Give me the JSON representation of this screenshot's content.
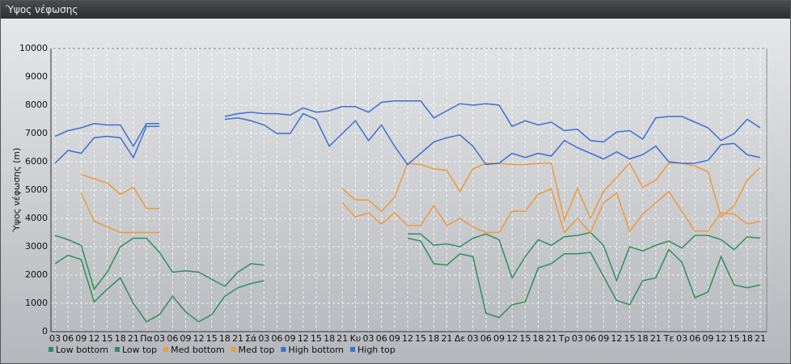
{
  "header": {
    "title": "Ύψος νέφωσης"
  },
  "chart_data": {
    "type": "line",
    "ylabel": "Ύψος νέφωσης (m)",
    "ylim": [
      0,
      10000
    ],
    "yticks": [
      0,
      1000,
      2000,
      3000,
      4000,
      5000,
      6000,
      7000,
      8000,
      9000,
      10000
    ],
    "grid": true,
    "categories": [
      "03",
      "06",
      "09",
      "12",
      "15",
      "18",
      "21",
      "Πα",
      "03",
      "06",
      "09",
      "12",
      "15",
      "18",
      "21",
      "Σά",
      "03",
      "06",
      "09",
      "12",
      "15",
      "18",
      "21",
      "Κυ",
      "03",
      "06",
      "09",
      "12",
      "15",
      "18",
      "21",
      "Δε",
      "03",
      "06",
      "09",
      "12",
      "15",
      "18",
      "21",
      "Τρ",
      "03",
      "06",
      "09",
      "12",
      "15",
      "18",
      "21",
      "Τε",
      "03",
      "06",
      "09",
      "12",
      "15",
      "18",
      "21"
    ],
    "series": [
      {
        "name": "Low bottom",
        "color": "#2f8f5c",
        "values": [
          2400,
          2700,
          2550,
          1050,
          1500,
          1900,
          1000,
          350,
          600,
          1250,
          700,
          350,
          600,
          1250,
          1550,
          1700,
          1800,
          null,
          null,
          null,
          null,
          null,
          null,
          null,
          null,
          null,
          null,
          3300,
          3200,
          2400,
          2350,
          2750,
          2650,
          650,
          500,
          950,
          1050,
          2250,
          2400,
          2750,
          2750,
          2800,
          1950,
          1100,
          950,
          1800,
          1900,
          2900,
          2450,
          1200,
          1400,
          2650,
          1650,
          1550,
          1650
        ]
      },
      {
        "name": "Low top",
        "color": "#2f8f5c",
        "values": [
          3400,
          3250,
          3050,
          1500,
          2100,
          3000,
          3300,
          3300,
          2800,
          2100,
          2150,
          2100,
          1850,
          1600,
          2100,
          2400,
          2350,
          null,
          null,
          null,
          null,
          null,
          null,
          null,
          null,
          null,
          null,
          3450,
          3450,
          3050,
          3100,
          3000,
          3300,
          3450,
          3250,
          1900,
          2650,
          3250,
          3050,
          3350,
          3400,
          3500,
          3050,
          1800,
          3000,
          2850,
          3050,
          3200,
          2950,
          3400,
          3400,
          3250,
          2900,
          3350,
          3300
        ]
      },
      {
        "name": "Med bottom",
        "color": "#ee9a3c",
        "values": [
          null,
          null,
          4900,
          3900,
          3700,
          3500,
          3500,
          3500,
          3500,
          null,
          null,
          null,
          null,
          null,
          null,
          null,
          null,
          null,
          null,
          null,
          null,
          null,
          4550,
          4050,
          4200,
          3800,
          4200,
          3750,
          3750,
          4450,
          3750,
          4000,
          3700,
          3500,
          3500,
          4250,
          4250,
          4850,
          5050,
          3500,
          4000,
          3500,
          4550,
          4900,
          3550,
          4150,
          4550,
          4950,
          4250,
          3550,
          3550,
          4200,
          4150,
          3800,
          3900
        ]
      },
      {
        "name": "Med top",
        "color": "#ee9a3c",
        "values": [
          null,
          null,
          5550,
          5400,
          5250,
          4850,
          5100,
          4350,
          4350,
          null,
          null,
          null,
          null,
          null,
          null,
          null,
          null,
          null,
          null,
          null,
          null,
          null,
          5050,
          4650,
          4650,
          4250,
          4750,
          5950,
          5900,
          5750,
          5700,
          4950,
          5750,
          5950,
          5950,
          5900,
          5900,
          5950,
          5950,
          3950,
          5050,
          4000,
          4950,
          5450,
          5950,
          5100,
          5350,
          5950,
          5950,
          5850,
          5650,
          4050,
          4450,
          5350,
          5800
        ]
      },
      {
        "name": "High bottom",
        "color": "#3b6fd6",
        "values": [
          5950,
          6400,
          6300,
          6850,
          6900,
          6850,
          6150,
          7250,
          7250,
          null,
          null,
          null,
          null,
          7500,
          7550,
          7450,
          7300,
          7000,
          7000,
          7700,
          7500,
          6550,
          7000,
          7450,
          6750,
          7300,
          6550,
          5900,
          6300,
          6700,
          6850,
          6950,
          6550,
          5900,
          5950,
          6300,
          6150,
          6300,
          6200,
          6750,
          6500,
          6300,
          6100,
          6350,
          6100,
          6250,
          6550,
          6000,
          5950,
          5950,
          6050,
          6600,
          6650,
          6250,
          6150
        ]
      },
      {
        "name": "High top",
        "color": "#3b6fd6",
        "values": [
          6900,
          7100,
          7200,
          7350,
          7300,
          7300,
          6550,
          7350,
          7350,
          null,
          null,
          null,
          null,
          7600,
          7700,
          7750,
          7700,
          7700,
          7650,
          7900,
          7750,
          7800,
          7950,
          7950,
          7750,
          8100,
          8150,
          8150,
          8150,
          7550,
          7800,
          8050,
          8000,
          8050,
          8000,
          7250,
          7450,
          7300,
          7400,
          7100,
          7150,
          6750,
          6700,
          7050,
          7100,
          6800,
          7550,
          7600,
          7600,
          7400,
          7200,
          6750,
          7000,
          7500,
          7200
        ]
      }
    ]
  }
}
